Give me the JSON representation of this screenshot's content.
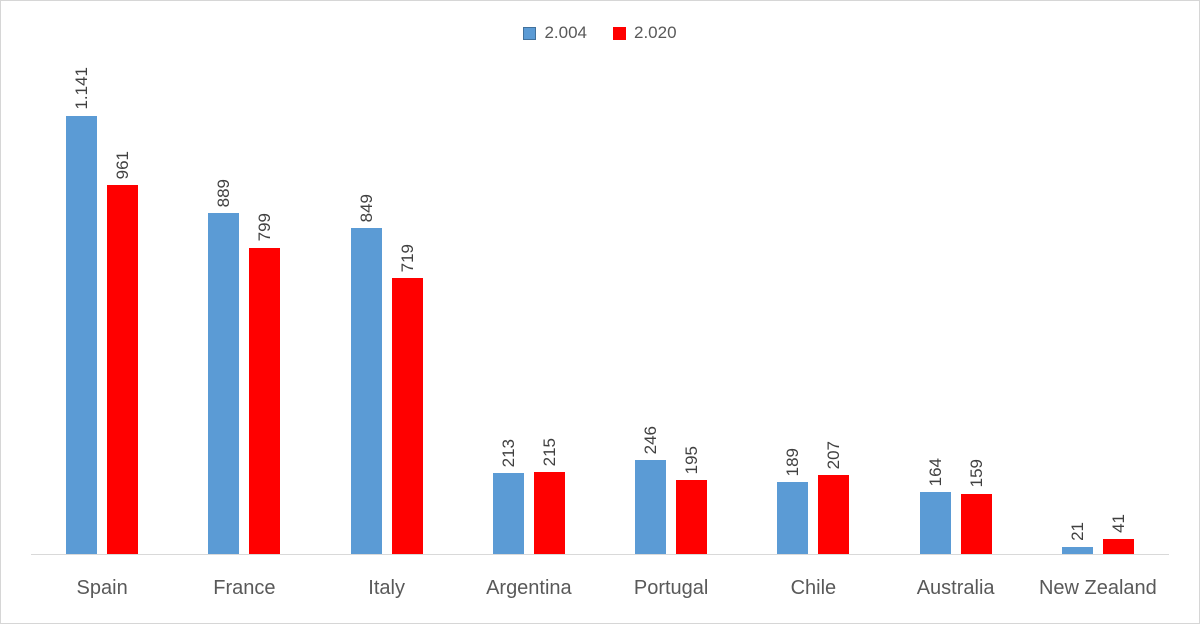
{
  "page": {
    "background": "#ffffff",
    "border_color": "#d6d6d6"
  },
  "chart_data": {
    "type": "bar",
    "title": "",
    "xlabel": "",
    "ylabel": "",
    "categories": [
      "Spain",
      "France",
      "Italy",
      "Argentina",
      "Portugal",
      "Chile",
      "Australia",
      "New Zealand"
    ],
    "series": [
      {
        "name": "2.004",
        "color": "#5b9bd5",
        "swatch_border": "#41719c",
        "values": [
          1141,
          889,
          849,
          213,
          246,
          189,
          164,
          21
        ],
        "labels": [
          "1.141",
          "889",
          "849",
          "213",
          "246",
          "189",
          "164",
          "21"
        ]
      },
      {
        "name": "2.020",
        "color": "#ff0000",
        "swatch_border": "#ff0000",
        "values": [
          961,
          799,
          719,
          215,
          195,
          207,
          159,
          41
        ],
        "labels": [
          "961",
          "799",
          "719",
          "215",
          "195",
          "207",
          "159",
          "41"
        ]
      }
    ],
    "ylim": [
      0,
      1200
    ],
    "grid": false,
    "legend_position": "top-center",
    "data_labels": "rotated-90-above-bars",
    "data_label_color": "#404040",
    "category_label_color": "#595959",
    "legend_text_color": "#595959",
    "axis_line_color": "#d9d9d9"
  }
}
